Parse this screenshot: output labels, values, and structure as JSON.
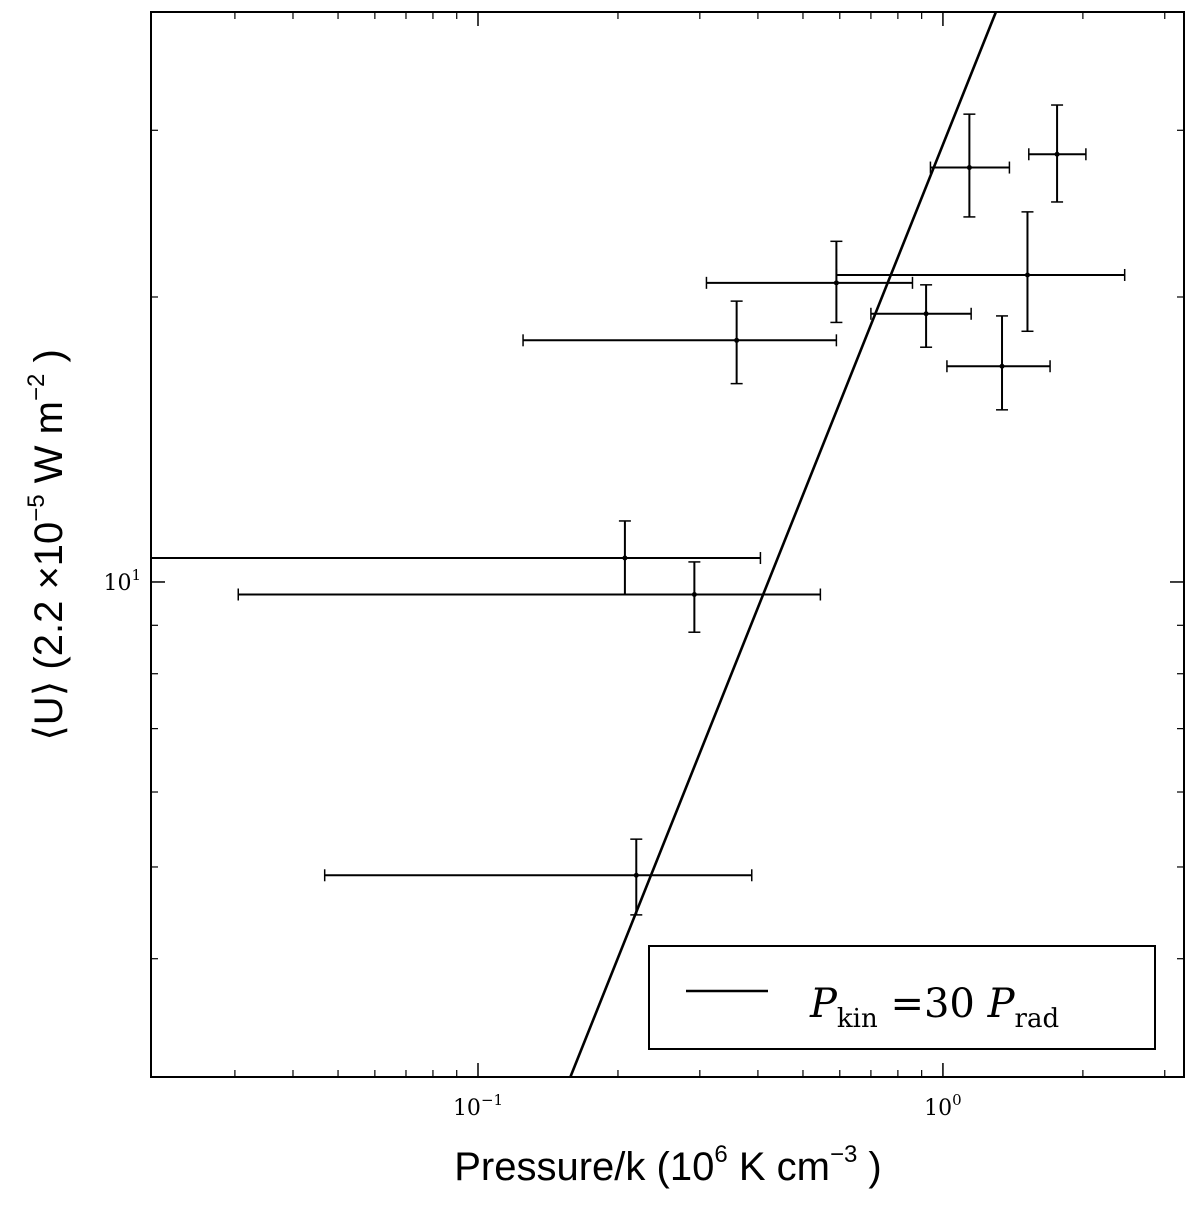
{
  "chart_data": {
    "type": "scatter",
    "xlabel_parts": {
      "base": "Pressure/k (10",
      "exp": "6",
      "unit": "  K cm",
      "unit_exp": "−3",
      "close": " )"
    },
    "ylabel_parts": {
      "pre": "⟨U⟩ (2.2 ×10",
      "exp": "−5",
      "mid": "  W m",
      "mid_exp": "−2",
      "close": " )"
    },
    "x_scale": "log",
    "y_scale": "log",
    "xlim": [
      0.0198,
      3.3
    ],
    "ylim": [
      3.0,
      40.0
    ],
    "x_ticks": [
      {
        "value": 0.1,
        "base": "10",
        "exp": "−1"
      },
      {
        "value": 1.0,
        "base": "10",
        "exp": "0"
      }
    ],
    "y_ticks": [
      {
        "value": 10,
        "base": "10",
        "exp": "1"
      }
    ],
    "x_minor_ticks": [
      0.03,
      0.04,
      0.05,
      0.06,
      0.07,
      0.08,
      0.09,
      0.2,
      0.3,
      0.4,
      0.5,
      0.6,
      0.7,
      0.8,
      0.9,
      2,
      3
    ],
    "y_minor_ticks": [
      4,
      5,
      6,
      7,
      8,
      9,
      20,
      30
    ],
    "points": [
      {
        "x": 0.36,
        "y": 18.0,
        "xerr": [
          0.125,
          0.59
        ],
        "yerr": [
          16.2,
          19.8
        ]
      },
      {
        "x": 0.59,
        "y": 20.7,
        "xerr": [
          0.31,
          0.86
        ],
        "yerr": [
          18.8,
          22.9
        ]
      },
      {
        "x": 0.92,
        "y": 19.2,
        "xerr": [
          0.7,
          1.15
        ],
        "yerr": [
          17.7,
          20.6
        ]
      },
      {
        "x": 1.14,
        "y": 27.4,
        "xerr": [
          0.94,
          1.39
        ],
        "yerr": [
          24.3,
          31.2
        ]
      },
      {
        "x": 1.34,
        "y": 16.9,
        "xerr": [
          1.02,
          1.7
        ],
        "yerr": [
          15.2,
          19.1
        ]
      },
      {
        "x": 1.52,
        "y": 21.1,
        "xerr": [
          0.59,
          2.46
        ],
        "yerr": [
          18.4,
          24.6
        ]
      },
      {
        "x": 1.76,
        "y": 28.3,
        "xerr": [
          1.53,
          2.03
        ],
        "yerr": [
          25.2,
          31.9
        ]
      },
      {
        "x": 0.207,
        "y": 10.6,
        "xerr": [
          0.0198,
          0.405
        ],
        "yerr": [
          9.7,
          11.6
        ]
      },
      {
        "x": 0.292,
        "y": 9.7,
        "xerr": [
          0.0305,
          0.545
        ],
        "yerr": [
          8.85,
          10.5
        ]
      },
      {
        "x": 0.219,
        "y": 4.9,
        "xerr": [
          0.0468,
          0.388
        ],
        "yerr": [
          4.45,
          5.35
        ]
      }
    ],
    "line": {
      "name": "P_kin = 30 P_rad",
      "points": [
        {
          "x": 0.158,
          "y": 3.0
        },
        {
          "x": 1.3,
          "y": 40.0
        }
      ]
    },
    "legend": {
      "placement": "lower-right",
      "label_parts": {
        "p1": "P",
        "s1": "kin",
        "eq": " =30 ",
        "p2": "P",
        "s2": "rad"
      }
    }
  }
}
